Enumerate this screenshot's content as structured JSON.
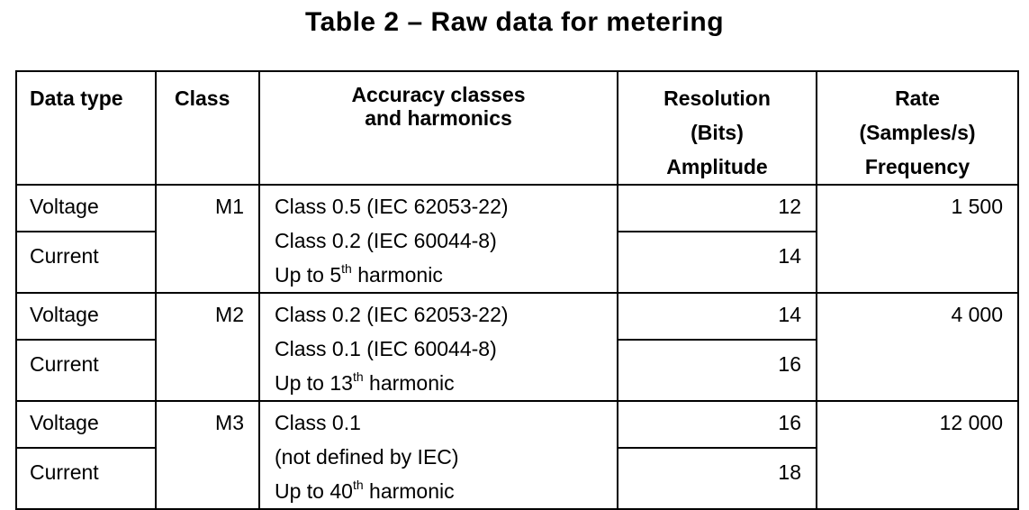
{
  "title": "Table 2 – Raw data for metering",
  "headers": {
    "data_type": "Data type",
    "class": "Class",
    "accuracy_l1": "Accuracy classes",
    "accuracy_l2": "and harmonics",
    "resolution_l1": "Resolution",
    "resolution_l2": "(Bits)",
    "resolution_l3": "Amplitude",
    "rate_l1": "Rate",
    "rate_l2": "(Samples/s)",
    "rate_l3": "Frequency"
  },
  "groups": [
    {
      "class": "M1",
      "rate": "1 500",
      "acc_line1": "Class 0.5 (IEC 62053-22)",
      "acc_line2": "Class 0.2 (IEC 60044-8)",
      "harm_prefix": "Up to 5",
      "harm_sup": "th",
      "harm_suffix": " harmonic",
      "rows": [
        {
          "data_type": "Voltage",
          "resolution": "12"
        },
        {
          "data_type": "Current",
          "resolution": "14"
        }
      ]
    },
    {
      "class": "M2",
      "rate": "4 000",
      "acc_line1": "Class 0.2 (IEC 62053-22)",
      "acc_line2": "Class 0.1 (IEC 60044-8)",
      "harm_prefix": "Up to 13",
      "harm_sup": "th",
      "harm_suffix": " harmonic",
      "rows": [
        {
          "data_type": "Voltage",
          "resolution": "14"
        },
        {
          "data_type": "Current",
          "resolution": "16"
        }
      ]
    },
    {
      "class": "M3",
      "rate": "12 000",
      "acc_line1": "Class 0.1",
      "acc_line2": "(not defined by IEC)",
      "harm_prefix": "Up to 40",
      "harm_sup": "th",
      "harm_suffix": " harmonic",
      "rows": [
        {
          "data_type": "Voltage",
          "resolution": "16"
        },
        {
          "data_type": "Current",
          "resolution": "18"
        }
      ]
    }
  ]
}
